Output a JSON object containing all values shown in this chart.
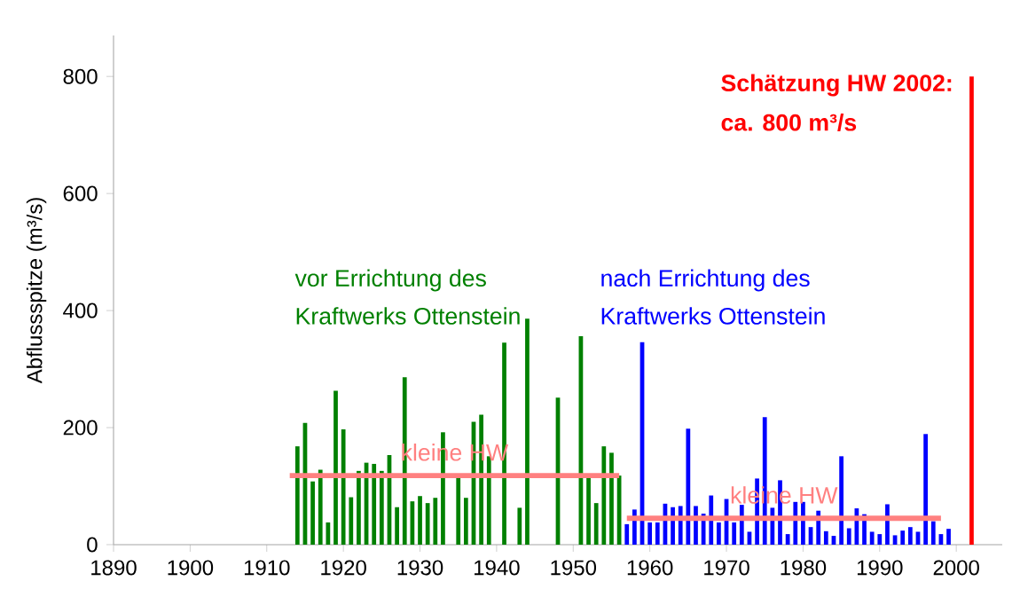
{
  "chart_data": {
    "type": "bar",
    "ylabel": "Abflussspitze (m³/s)",
    "xlim": [
      1890,
      2006
    ],
    "ylim": [
      0,
      870
    ],
    "xticks": [
      1890,
      1900,
      1910,
      1920,
      1930,
      1940,
      1950,
      1960,
      1970,
      1980,
      1990,
      2000
    ],
    "yticks": [
      0,
      200,
      400,
      600,
      800
    ],
    "series": [
      {
        "color": "#008000",
        "x": [
          1914,
          1915,
          1916,
          1917,
          1918,
          1919,
          1920,
          1921,
          1922,
          1923,
          1924,
          1925,
          1926,
          1927,
          1928,
          1929,
          1930,
          1931,
          1932,
          1933,
          1935,
          1936,
          1937,
          1938,
          1939,
          1941,
          1943,
          1944,
          1948,
          1951,
          1952,
          1953,
          1954,
          1955,
          1956
        ],
        "values": [
          168,
          208,
          108,
          128,
          38,
          263,
          197,
          81,
          126,
          140,
          138,
          126,
          153,
          64,
          286,
          74,
          83,
          71,
          80,
          192,
          118,
          80,
          210,
          222,
          151,
          345,
          63,
          386,
          251,
          356,
          118,
          71,
          168,
          157,
          118
        ]
      },
      {
        "color": "#0000ff",
        "x": [
          1957,
          1958,
          1959,
          1960,
          1961,
          1962,
          1963,
          1964,
          1965,
          1966,
          1967,
          1968,
          1969,
          1970,
          1971,
          1972,
          1973,
          1974,
          1975,
          1976,
          1977,
          1978,
          1979,
          1980,
          1981,
          1982,
          1983,
          1984,
          1985,
          1986,
          1987,
          1988,
          1989,
          1990,
          1991,
          1992,
          1993,
          1994,
          1995,
          1996,
          1997,
          1998,
          1999
        ],
        "values": [
          35,
          60,
          346,
          38,
          38,
          70,
          64,
          66,
          198,
          66,
          53,
          84,
          38,
          78,
          38,
          68,
          22,
          113,
          218,
          63,
          110,
          18,
          73,
          73,
          30,
          58,
          23,
          15,
          151,
          28,
          62,
          52,
          22,
          18,
          69,
          16,
          24,
          30,
          22,
          189,
          40,
          18,
          27
        ]
      },
      {
        "color": "#ff0000",
        "x": [
          2002
        ],
        "values": [
          800
        ]
      },
      {
        "type": "line",
        "name": "kleine HW",
        "color": "#ff8080",
        "x": [
          1913,
          1956
        ],
        "values": [
          118,
          118
        ]
      },
      {
        "type": "line",
        "name": "kleine HW",
        "color": "#ff8080",
        "x": [
          1957,
          1998
        ],
        "values": [
          45,
          45
        ]
      }
    ],
    "annotations": [
      "vor Errichtung des",
      "Kraftwerks Ottenstein",
      "nach Errichtung des",
      "Kraftwerks Ottenstein",
      "**Schätzung HW 2002:**",
      "**ca. 800 m³/s**"
    ]
  }
}
